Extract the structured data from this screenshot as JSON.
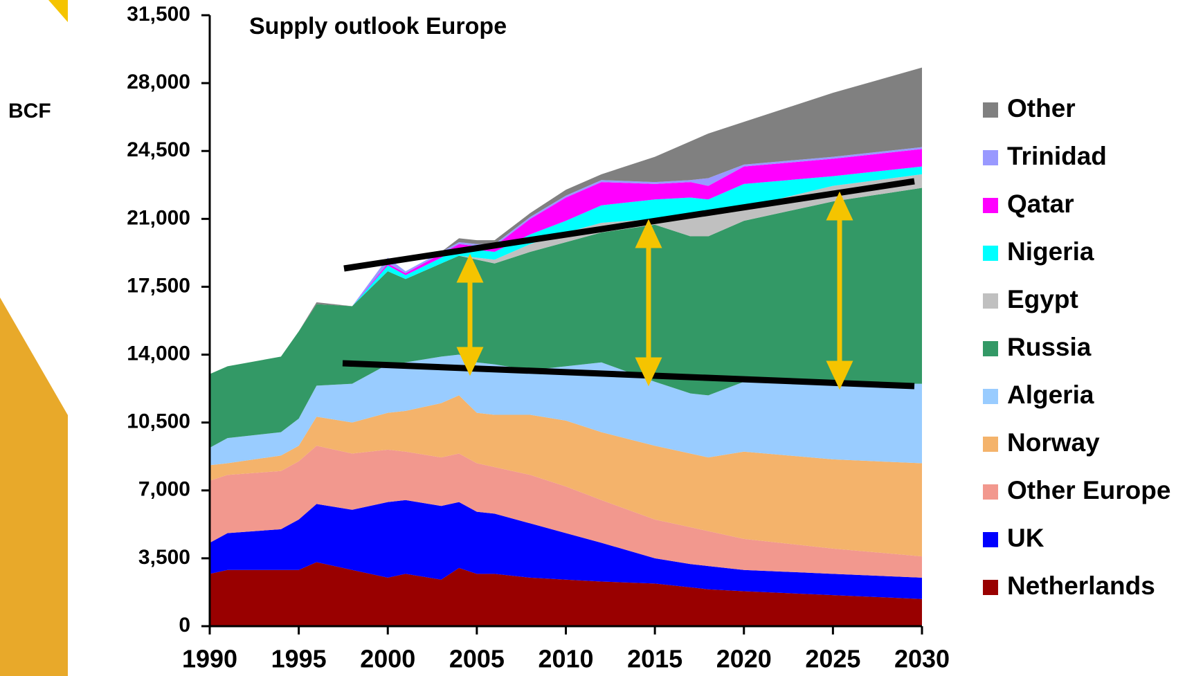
{
  "chart_data": {
    "type": "stacked_area",
    "title": "Supply outlook Europe",
    "y_label": "BCF",
    "x": [
      1990,
      1991,
      1994,
      1995,
      1996,
      1998,
      2000,
      2001,
      2003,
      2004,
      2005,
      2006,
      2008,
      2010,
      2012,
      2015,
      2017,
      2018,
      2020,
      2025,
      2030
    ],
    "xlim": [
      1990,
      2030
    ],
    "xticks": [
      1990,
      1995,
      2000,
      2005,
      2010,
      2015,
      2020,
      2025,
      2030
    ],
    "ylim": [
      0,
      31500
    ],
    "yticks": [
      0,
      {
        "value": 3500,
        "label": "3,500"
      },
      {
        "value": 7000,
        "label": "7,000"
      },
      {
        "value": 10500,
        "label": "10,500"
      },
      {
        "value": 14000,
        "label": "14,000"
      },
      {
        "value": 17500,
        "label": "17,500"
      },
      {
        "value": 21000,
        "label": "21,000"
      },
      {
        "value": 24500,
        "label": "24,500"
      },
      {
        "value": 28000,
        "label": "28,000"
      },
      {
        "value": 31500,
        "label": "31,500"
      }
    ],
    "series": [
      {
        "name": "Netherlands",
        "color": "#990000",
        "values": [
          2700,
          2900,
          2900,
          2900,
          3300,
          2900,
          2500,
          2700,
          2400,
          3000,
          2700,
          2700,
          2500,
          2400,
          2300,
          2200,
          2000,
          1900,
          1800,
          1600,
          1400
        ]
      },
      {
        "name": "UK",
        "color": "#0000ff",
        "values": [
          1600,
          1900,
          2100,
          2600,
          3000,
          3100,
          3900,
          3800,
          3800,
          3400,
          3200,
          3100,
          2800,
          2400,
          2000,
          1300,
          1200,
          1200,
          1100,
          1100,
          1100
        ]
      },
      {
        "name": "Other Europe",
        "color": "#f2988e",
        "values": [
          3200,
          3000,
          3000,
          3000,
          3000,
          2900,
          2700,
          2500,
          2500,
          2500,
          2500,
          2400,
          2500,
          2400,
          2200,
          2000,
          1900,
          1800,
          1600,
          1300,
          1100
        ]
      },
      {
        "name": "Norway",
        "color": "#f4b36b",
        "values": [
          800,
          600,
          800,
          800,
          1500,
          1600,
          1900,
          2100,
          2800,
          3000,
          2600,
          2700,
          3100,
          3400,
          3500,
          3800,
          3800,
          3800,
          4500,
          4600,
          4800
        ]
      },
      {
        "name": "Algeria",
        "color": "#99ccff",
        "values": [
          900,
          1300,
          1200,
          1400,
          1600,
          2000,
          2500,
          2500,
          2400,
          2100,
          2600,
          2600,
          2300,
          2800,
          3600,
          3300,
          3100,
          3200,
          3600,
          3900,
          4100
        ]
      },
      {
        "name": "Russia",
        "color": "#339966",
        "values": [
          3800,
          3700,
          3900,
          4500,
          4200,
          4000,
          4800,
          4300,
          4800,
          5100,
          5300,
          5200,
          6100,
          6400,
          6700,
          8100,
          8100,
          8200,
          8300,
          9400,
          10100
        ]
      },
      {
        "name": "Egypt",
        "color": "#c0c0c0",
        "values": [
          0,
          0,
          0,
          0,
          0,
          0,
          0,
          0,
          0,
          0,
          100,
          200,
          400,
          500,
          500,
          300,
          1000,
          1100,
          700,
          800,
          700
        ]
      },
      {
        "name": "Nigeria",
        "color": "#00ffff",
        "values": [
          0,
          0,
          0,
          0,
          0,
          0,
          300,
          200,
          300,
          400,
          400,
          400,
          500,
          600,
          900,
          1000,
          1000,
          800,
          1200,
          500,
          400
        ]
      },
      {
        "name": "Qatar",
        "color": "#ff00ff",
        "values": [
          0,
          0,
          0,
          0,
          0,
          0,
          100,
          100,
          200,
          200,
          200,
          300,
          800,
          1200,
          1200,
          800,
          800,
          700,
          900,
          900,
          900
        ]
      },
      {
        "name": "Trinidad",
        "color": "#9999ff",
        "values": [
          0,
          0,
          0,
          0,
          0,
          0,
          300,
          100,
          100,
          100,
          100,
          100,
          100,
          100,
          100,
          100,
          100,
          400,
          100,
          100,
          100
        ]
      },
      {
        "name": "Other",
        "color": "#808080",
        "values": [
          0,
          0,
          0,
          0,
          100,
          0,
          0,
          0,
          0,
          200,
          200,
          200,
          200,
          300,
          300,
          1300,
          2000,
          2300,
          2200,
          3300,
          4100
        ]
      }
    ]
  }
}
